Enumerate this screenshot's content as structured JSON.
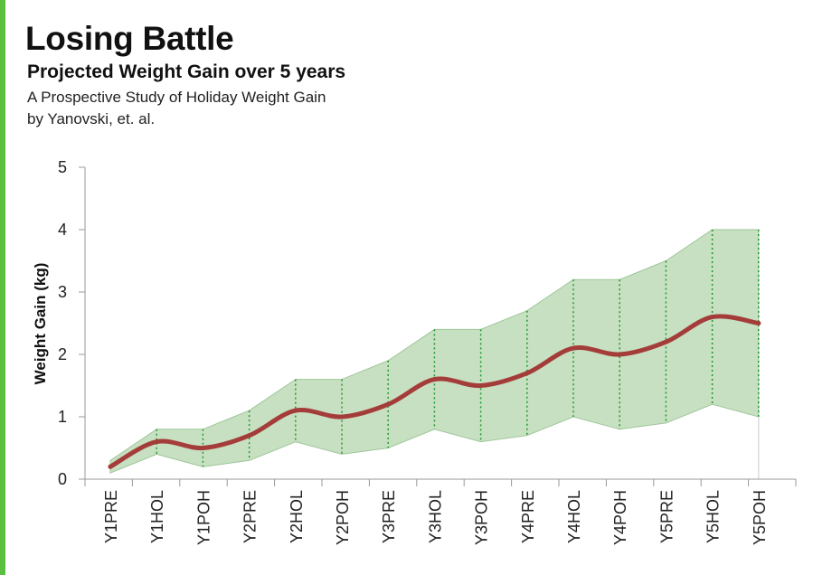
{
  "header": {
    "title": "Losing Battle",
    "subtitle": "Projected Weight Gain over 5 years",
    "source_line1": "A Prospective Study of  Holiday Weight Gain",
    "source_line2": "by Yanovski, et. al."
  },
  "colors": {
    "accent_bar": "#5bbf40",
    "line": "#a43d3a",
    "band_fill": "#c7e0c2",
    "band_edge": "#9fc699",
    "dotted": "#1d9a2a",
    "axis": "#999999"
  },
  "chart_data": {
    "type": "line",
    "xlabel": "",
    "ylabel": "Weight Gain (kg)",
    "ylim": [
      0,
      5
    ],
    "yticks": [
      0,
      1,
      2,
      3,
      4,
      5
    ],
    "grid": false,
    "categories": [
      "Y1PRE",
      "Y1HOL",
      "Y1POH",
      "Y2PRE",
      "Y2HOL",
      "Y2POH",
      "Y3PRE",
      "Y3HOL",
      "Y3POH",
      "Y4PRE",
      "Y4HOL",
      "Y4POH",
      "Y5PRE",
      "Y5HOL",
      "Y5POH"
    ],
    "series": [
      {
        "values": [
          0.2,
          0.6,
          0.5,
          0.7,
          1.1,
          1.0,
          1.2,
          1.6,
          1.5,
          1.7,
          2.1,
          2.0,
          2.2,
          2.6,
          2.5
        ]
      }
    ],
    "range_band": {
      "upper": [
        0.3,
        0.8,
        0.8,
        1.1,
        1.6,
        1.6,
        1.9,
        2.4,
        2.4,
        2.7,
        3.2,
        3.2,
        3.5,
        4.0,
        4.0
      ],
      "lower": [
        0.1,
        0.4,
        0.2,
        0.3,
        0.6,
        0.4,
        0.5,
        0.8,
        0.6,
        0.7,
        1.0,
        0.8,
        0.9,
        1.2,
        1.0
      ]
    }
  }
}
